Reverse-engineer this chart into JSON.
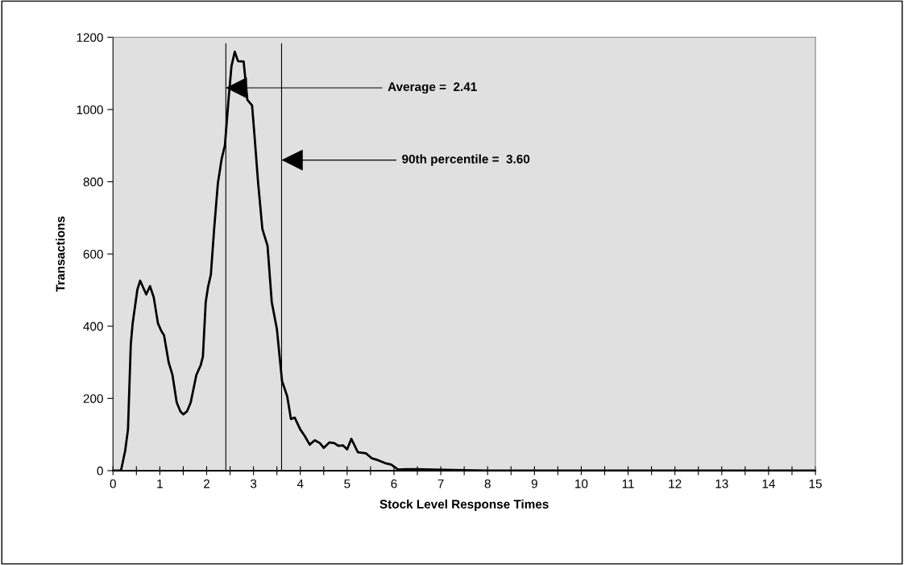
{
  "chart_data": {
    "type": "line",
    "xlabel": "Stock Level Response Times",
    "ylabel": "Transactions",
    "x": [
      0,
      0.17,
      0.26,
      0.32,
      0.38,
      0.42,
      0.52,
      0.58,
      0.71,
      0.79,
      0.87,
      0.96,
      1.03,
      1.09,
      1.19,
      1.27,
      1.36,
      1.44,
      1.5,
      1.58,
      1.66,
      1.78,
      1.87,
      1.92,
      1.98,
      2.03,
      2.09,
      2.16,
      2.24,
      2.32,
      2.39,
      2.47,
      2.53,
      2.6,
      2.67,
      2.79,
      2.87,
      2.97,
      3.02,
      3.1,
      3.19,
      3.3,
      3.39,
      3.5,
      3.61,
      3.72,
      3.8,
      3.88,
      4.0,
      4.09,
      4.2,
      4.31,
      4.42,
      4.5,
      4.62,
      4.73,
      4.81,
      4.91,
      5.0,
      5.09,
      5.23,
      5.4,
      5.53,
      5.66,
      5.81,
      5.94,
      6.09,
      6.25,
      6.52,
      6.85,
      7.5,
      8,
      15
    ],
    "series": [
      {
        "color": "#000000",
        "values": [
          0,
          0,
          55,
          114,
          350,
          408,
          501,
          526,
          488,
          511,
          480,
          408,
          387,
          375,
          299,
          265,
          189,
          164,
          156,
          164,
          189,
          265,
          291,
          316,
          467,
          509,
          543,
          669,
          796,
          863,
          901,
          1032,
          1120,
          1160,
          1134,
          1133,
          1027,
          1011,
          931,
          796,
          669,
          623,
          467,
          392,
          248,
          206,
          143,
          147,
          114,
          97,
          72,
          84,
          76,
          63,
          78,
          76,
          69,
          70,
          59,
          88,
          51,
          48,
          34,
          29,
          21,
          17,
          3,
          4,
          4,
          3,
          1,
          0,
          0
        ]
      }
    ],
    "xlim": [
      0,
      15
    ],
    "ylim": [
      0,
      1200
    ],
    "xticks": [
      0,
      {
        "value": 0.5,
        "label": null
      },
      1,
      {
        "value": 1.5,
        "label": null
      },
      2,
      {
        "value": 2.5,
        "label": null
      },
      3,
      {
        "value": 3.5,
        "label": null
      },
      4,
      {
        "value": 4.5,
        "label": null
      },
      5,
      {
        "value": 5.5,
        "label": null
      },
      6,
      {
        "value": 6.5,
        "label": null
      },
      7,
      {
        "value": 7.5,
        "label": null
      },
      8,
      {
        "value": 8.5,
        "label": null
      },
      9,
      {
        "value": 9.5,
        "label": null
      },
      10,
      {
        "value": 10.5,
        "label": null
      },
      11,
      {
        "value": 11.5,
        "label": null
      },
      12,
      {
        "value": 12.5,
        "label": null
      },
      13,
      {
        "value": 13.5,
        "label": null
      },
      14,
      {
        "value": 14.5,
        "label": null
      },
      15
    ],
    "yticks": [
      0,
      200,
      400,
      600,
      800,
      1000,
      1200
    ],
    "ref_lines": [
      {
        "axis": "x",
        "value": 2.41,
        "color": "#000000"
      },
      {
        "axis": "x",
        "value": 3.6,
        "color": "#000000"
      }
    ],
    "annotations": [
      {
        "text": "Average =  2.41",
        "x": 2.41,
        "y": 1060
      },
      {
        "text": "90th percentile =  3.60",
        "x": 3.6,
        "y": 860
      }
    ],
    "grid": false,
    "legend": false,
    "marker": "none",
    "line_style": "solid"
  }
}
